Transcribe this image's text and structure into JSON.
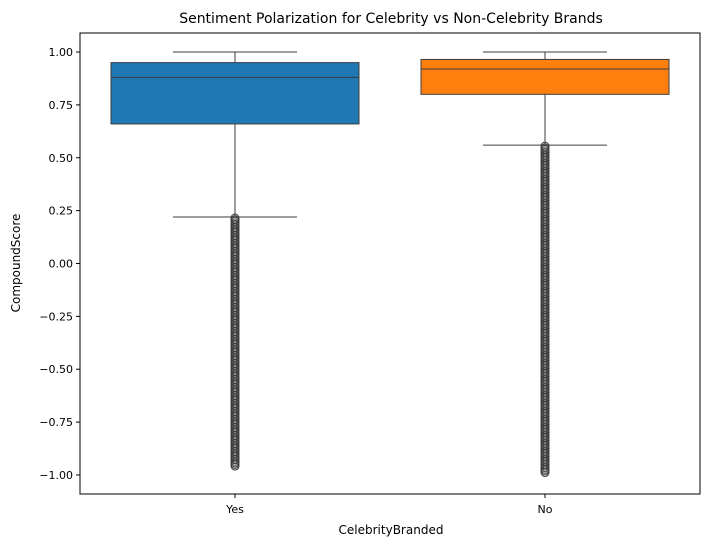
{
  "chart_data": {
    "type": "box",
    "title": "Sentiment Polarization for Celebrity vs Non-Celebrity Brands",
    "xlabel": "CelebrityBranded",
    "ylabel": "CompoundScore",
    "ylim": [
      -1.09,
      1.09
    ],
    "yticks": [
      1.0,
      0.75,
      0.5,
      0.25,
      0.0,
      -0.25,
      -0.5,
      -0.75,
      -1.0
    ],
    "ytick_labels": [
      "1.00",
      "0.75",
      "0.50",
      "0.25",
      "0.00",
      "−0.25",
      "−0.50",
      "−0.75",
      "−1.00"
    ],
    "categories": [
      "Yes",
      "No"
    ],
    "boxes": [
      {
        "category": "Yes",
        "color": "#1f77b4",
        "whisker_low": 0.22,
        "q1": 0.66,
        "median": 0.88,
        "q3": 0.95,
        "whisker_high": 1.0,
        "outliers_range": [
          -0.96,
          0.215
        ]
      },
      {
        "category": "No",
        "color": "#ff7f0e",
        "whisker_low": 0.56,
        "q1": 0.8,
        "median": 0.92,
        "q3": 0.965,
        "whisker_high": 1.0,
        "outliers_range": [
          -0.99,
          0.555
        ]
      }
    ],
    "grid": false,
    "legend": "none"
  }
}
